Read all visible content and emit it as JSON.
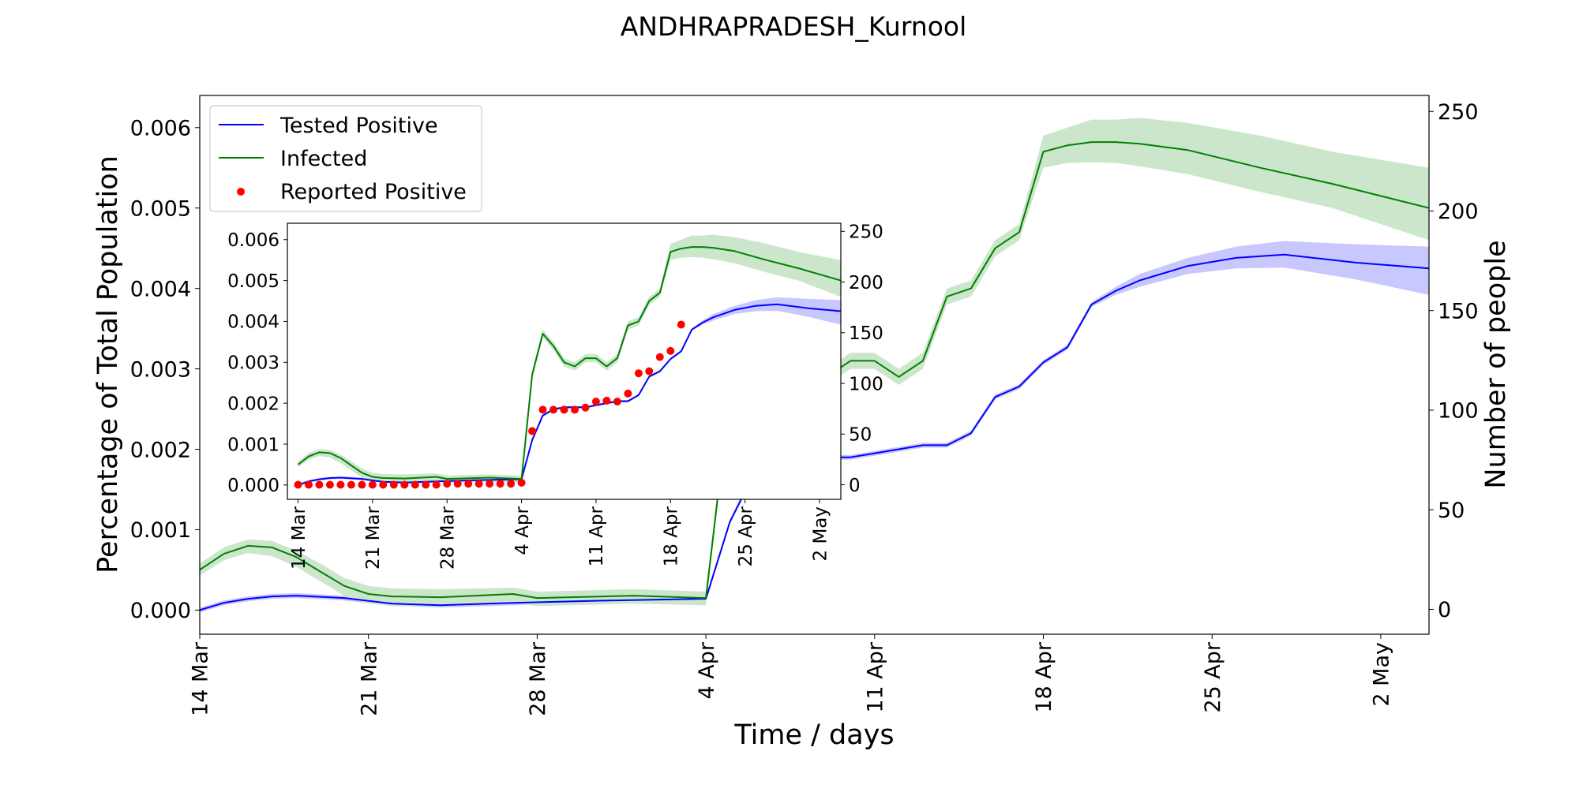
{
  "chart_data": [
    {
      "panel": "main",
      "type": "line",
      "title": "ANDHRAPRADESH_Kurnool",
      "xlabel": "Time / days",
      "ylabel_left": "Percentage of Total Population",
      "ylabel_right": "Number of people",
      "x_range": [
        "2020-03-14",
        "2020-05-04"
      ],
      "ylim_left": [
        -0.0003,
        0.0064
      ],
      "ylim_right": [
        -12.5,
        258
      ],
      "x_tick_labels": [
        "14 Mar",
        "21 Mar",
        "28 Mar",
        "4 Apr",
        "11 Apr",
        "18 Apr",
        "25 Apr",
        "2 May"
      ],
      "y_tick_labels_left": [
        "0.000",
        "0.001",
        "0.002",
        "0.003",
        "0.004",
        "0.005",
        "0.006"
      ],
      "y_tick_labels_right": [
        "0",
        "50",
        "100",
        "150",
        "200",
        "250"
      ],
      "grid": false,
      "legend_placement": "top-left",
      "legend": [
        {
          "label": "Tested Positive",
          "marker": "line",
          "color": "#0000ff"
        },
        {
          "label": "Infected",
          "marker": "line",
          "color": "#008000"
        },
        {
          "label": "Reported Positive",
          "marker": "dot",
          "color": "#ff0000"
        }
      ],
      "series": [
        {
          "name": "Tested Positive",
          "color": "#0000ff",
          "band_color": "#c8c8ff",
          "x": [
            "2020-03-14",
            "2020-03-15",
            "2020-03-16",
            "2020-03-17",
            "2020-03-18",
            "2020-03-20",
            "2020-03-22",
            "2020-03-24",
            "2020-03-27",
            "2020-03-31",
            "2020-04-04",
            "2020-04-05",
            "2020-04-06",
            "2020-04-07",
            "2020-04-08",
            "2020-04-09",
            "2020-04-10",
            "2020-04-11",
            "2020-04-12",
            "2020-04-13",
            "2020-04-14",
            "2020-04-15",
            "2020-04-16",
            "2020-04-17",
            "2020-04-18",
            "2020-04-19",
            "2020-04-20",
            "2020-04-21",
            "2020-04-22",
            "2020-04-24",
            "2020-04-26",
            "2020-04-28",
            "2020-05-01",
            "2020-05-04"
          ],
          "y": [
            0.0,
            9e-05,
            0.00014,
            0.00017,
            0.00018,
            0.00015,
            8e-05,
            6e-05,
            9e-05,
            0.00012,
            0.00014,
            0.0011,
            0.0017,
            0.00185,
            0.0019,
            0.0019,
            0.0019,
            0.00195,
            0.002,
            0.00205,
            0.00205,
            0.0022,
            0.00265,
            0.00278,
            0.00308,
            0.00327,
            0.0038,
            0.00397,
            0.0041,
            0.00428,
            0.00438,
            0.00442,
            0.00432,
            0.00425
          ],
          "band_upper": [
            3e-05,
            0.00012,
            0.00017,
            0.0002,
            0.00021,
            0.00018,
            0.00011,
            9e-05,
            0.00012,
            0.00015,
            0.00017,
            0.00113,
            0.00173,
            0.00188,
            0.00193,
            0.00193,
            0.00193,
            0.00198,
            0.00203,
            0.00208,
            0.00208,
            0.00223,
            0.00268,
            0.00281,
            0.00311,
            0.0033,
            0.00383,
            0.00402,
            0.00418,
            0.00438,
            0.00452,
            0.00459,
            0.00455,
            0.00452
          ],
          "band_lower": [
            -3e-05,
            6e-05,
            0.00011,
            0.00014,
            0.00015,
            0.00012,
            5e-05,
            3e-05,
            6e-05,
            9e-05,
            0.00011,
            0.00107,
            0.00167,
            0.00182,
            0.00187,
            0.00187,
            0.00187,
            0.00192,
            0.00197,
            0.00202,
            0.00202,
            0.00217,
            0.00262,
            0.00275,
            0.00305,
            0.00324,
            0.00377,
            0.00392,
            0.00402,
            0.00418,
            0.00425,
            0.00426,
            0.00411,
            0.00392
          ]
        },
        {
          "name": "Infected",
          "color": "#008000",
          "band_color": "#cce6cc",
          "x": [
            "2020-03-14",
            "2020-03-15",
            "2020-03-16",
            "2020-03-17",
            "2020-03-18",
            "2020-03-19",
            "2020-03-20",
            "2020-03-21",
            "2020-03-22",
            "2020-03-24",
            "2020-03-27",
            "2020-03-28",
            "2020-04-01",
            "2020-04-04",
            "2020-04-05",
            "2020-04-06",
            "2020-04-07",
            "2020-04-08",
            "2020-04-09",
            "2020-04-10",
            "2020-04-11",
            "2020-04-12",
            "2020-04-13",
            "2020-04-14",
            "2020-04-15",
            "2020-04-16",
            "2020-04-17",
            "2020-04-18",
            "2020-04-19",
            "2020-04-20",
            "2020-04-21",
            "2020-04-22",
            "2020-04-24",
            "2020-04-27",
            "2020-04-30",
            "2020-05-04"
          ],
          "y": [
            0.0005,
            0.0007,
            0.0008,
            0.00078,
            0.00066,
            0.00048,
            0.0003,
            0.0002,
            0.00017,
            0.00016,
            0.0002,
            0.00015,
            0.00018,
            0.00015,
            0.0027,
            0.0037,
            0.0034,
            0.003,
            0.0029,
            0.0031,
            0.0031,
            0.0029,
            0.0031,
            0.0039,
            0.004,
            0.0045,
            0.0047,
            0.0057,
            0.00578,
            0.00582,
            0.00582,
            0.0058,
            0.00572,
            0.0055,
            0.0053,
            0.005
          ],
          "band_upper": [
            0.00058,
            0.00078,
            0.00088,
            0.00086,
            0.00074,
            0.00058,
            0.0004,
            0.0003,
            0.00027,
            0.00026,
            0.00028,
            0.00023,
            0.00026,
            0.00023,
            0.0028,
            0.0038,
            0.0035,
            0.0031,
            0.003,
            0.0032,
            0.0032,
            0.003,
            0.0032,
            0.004,
            0.0041,
            0.0046,
            0.0048,
            0.0059,
            0.006,
            0.0061,
            0.0061,
            0.00612,
            0.00606,
            0.0059,
            0.0057,
            0.0055
          ],
          "band_lower": [
            0.00043,
            0.00062,
            0.00071,
            0.00067,
            0.00054,
            0.00036,
            0.00018,
            8e-05,
            5e-05,
            4e-05,
            9e-05,
            5e-05,
            8e-05,
            6e-05,
            0.0026,
            0.0036,
            0.0033,
            0.0029,
            0.0028,
            0.003,
            0.003,
            0.0028,
            0.003,
            0.0038,
            0.0039,
            0.0044,
            0.0046,
            0.0055,
            0.00556,
            0.00557,
            0.00556,
            0.00552,
            0.00542,
            0.0052,
            0.005,
            0.0046
          ]
        }
      ]
    },
    {
      "panel": "inset",
      "type": "line",
      "x_range": [
        "2020-03-13",
        "2020-05-04"
      ],
      "ylim_left": [
        -0.00035,
        0.0064
      ],
      "ylim_right": [
        -14.4,
        258
      ],
      "x_tick_labels": [
        "14 Mar",
        "21 Mar",
        "28 Mar",
        "4 Apr",
        "11 Apr",
        "18 Apr",
        "25 Apr",
        "2 May"
      ],
      "y_tick_labels_left": [
        "0.000",
        "0.001",
        "0.002",
        "0.003",
        "0.004",
        "0.005",
        "0.006"
      ],
      "y_tick_labels_right": [
        "0",
        "50",
        "100",
        "150",
        "200",
        "250"
      ],
      "grid": false,
      "series": [
        {
          "name": "Reported Positive",
          "type": "scatter",
          "color": "#ff0000",
          "x": [
            "2020-03-14",
            "2020-03-15",
            "2020-03-16",
            "2020-03-17",
            "2020-03-18",
            "2020-03-19",
            "2020-03-20",
            "2020-03-21",
            "2020-03-22",
            "2020-03-23",
            "2020-03-24",
            "2020-03-25",
            "2020-03-26",
            "2020-03-27",
            "2020-03-28",
            "2020-03-29",
            "2020-03-30",
            "2020-03-31",
            "2020-04-01",
            "2020-04-02",
            "2020-04-03",
            "2020-04-04",
            "2020-04-05",
            "2020-04-06",
            "2020-04-07",
            "2020-04-08",
            "2020-04-09",
            "2020-04-10",
            "2020-04-11",
            "2020-04-12",
            "2020-04-13",
            "2020-04-14",
            "2020-04-15",
            "2020-04-16",
            "2020-04-17",
            "2020-04-18",
            "2020-04-19"
          ],
          "y": [
            0,
            0,
            0,
            0,
            0,
            0,
            0,
            0,
            0,
            0,
            0,
            0,
            0,
            0,
            1,
            1,
            1,
            1,
            1,
            1,
            1,
            2,
            53,
            74,
            74,
            74,
            74,
            76,
            82,
            83,
            82,
            90,
            110,
            112,
            126,
            132,
            158
          ]
        }
      ]
    }
  ]
}
